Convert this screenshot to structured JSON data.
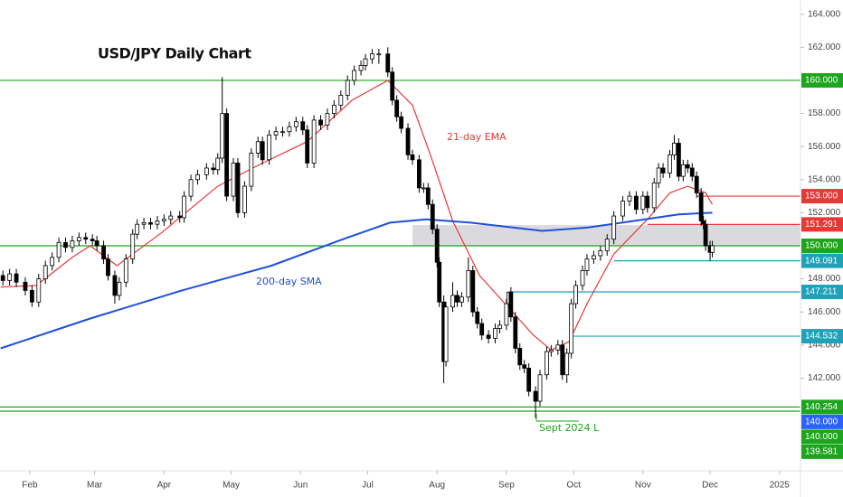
{
  "chart_data": {
    "type": "candlestick",
    "title": "USD/JPY Daily Chart",
    "xlim": [
      18.7,
      376.4
    ],
    "ylim": [
      136.45,
      164.86
    ],
    "xticks": [
      {
        "value": 32,
        "label": "Feb"
      },
      {
        "value": 61,
        "label": "Mar"
      },
      {
        "value": 92,
        "label": "Apr"
      },
      {
        "value": 122,
        "label": "May"
      },
      {
        "value": 153,
        "label": "Jun"
      },
      {
        "value": 183,
        "label": "Jul"
      },
      {
        "value": 214,
        "label": "Aug"
      },
      {
        "value": 245,
        "label": "Sep"
      },
      {
        "value": 275,
        "label": "Oct"
      },
      {
        "value": 306,
        "label": "Nov"
      },
      {
        "value": 336,
        "label": "Dec"
      },
      {
        "value": 367,
        "label": "2025"
      }
    ],
    "yticks": [
      {
        "value": 142,
        "label": "142.000"
      },
      {
        "value": 144,
        "label": "144.000"
      },
      {
        "value": 146,
        "label": "146.000"
      },
      {
        "value": 148,
        "label": "148.000"
      },
      {
        "value": 152,
        "label": "152.000"
      },
      {
        "value": 154,
        "label": "154.000"
      },
      {
        "value": 156,
        "label": "156.000"
      },
      {
        "value": 158,
        "label": "158.000"
      },
      {
        "value": 162,
        "label": "162.000"
      },
      {
        "value": 164,
        "label": "164.000"
      }
    ],
    "up_color": "#ffffff",
    "down_color": "#000000",
    "ohlc": [
      [
        20,
        148.2,
        148.5,
        147.6,
        147.9
      ],
      [
        23,
        147.9,
        148.6,
        147.6,
        148.3
      ],
      [
        26,
        148.3,
        148.6,
        147.5,
        147.8
      ],
      [
        30,
        147.8,
        148.1,
        147.0,
        147.3
      ],
      [
        33,
        147.3,
        147.6,
        146.3,
        146.6
      ],
      [
        36,
        146.6,
        148.3,
        146.3,
        148.0
      ],
      [
        39,
        148.0,
        149.1,
        147.7,
        148.8
      ],
      [
        42,
        148.8,
        149.6,
        148.5,
        149.3
      ],
      [
        45,
        149.3,
        150.5,
        149.0,
        150.2
      ],
      [
        48,
        150.2,
        150.5,
        149.6,
        149.9
      ],
      [
        51,
        149.9,
        150.6,
        149.6,
        150.3
      ],
      [
        54,
        150.3,
        150.8,
        150.0,
        150.5
      ],
      [
        57,
        150.5,
        150.8,
        150.1,
        150.4
      ],
      [
        60,
        150.4,
        150.7,
        150.0,
        150.3
      ],
      [
        62,
        150.3,
        150.6,
        149.7,
        150.0
      ],
      [
        65,
        150.0,
        150.3,
        148.9,
        149.2
      ],
      [
        67,
        149.2,
        149.5,
        147.9,
        148.2
      ],
      [
        70,
        148.2,
        148.5,
        146.5,
        147.0
      ],
      [
        72,
        147.0,
        148.1,
        146.7,
        147.8
      ],
      [
        75,
        147.8,
        149.5,
        147.5,
        149.2
      ],
      [
        78,
        149.2,
        151.0,
        148.9,
        150.7
      ],
      [
        80,
        150.7,
        151.6,
        150.4,
        151.3
      ],
      [
        83,
        151.3,
        151.7,
        151.0,
        151.4
      ],
      [
        86,
        151.4,
        151.7,
        151.0,
        151.3
      ],
      [
        89,
        151.3,
        151.8,
        151.0,
        151.5
      ],
      [
        92,
        151.5,
        151.9,
        151.2,
        151.6
      ],
      [
        95,
        151.6,
        152.1,
        151.3,
        151.8
      ],
      [
        99,
        151.8,
        152.1,
        151.4,
        151.7
      ],
      [
        101,
        151.7,
        153.3,
        151.4,
        153.0
      ],
      [
        104,
        153.0,
        154.3,
        152.7,
        154.0
      ],
      [
        107,
        154.0,
        154.6,
        153.7,
        154.3
      ],
      [
        111,
        154.3,
        155.0,
        154.0,
        154.7
      ],
      [
        114,
        154.7,
        155.0,
        154.3,
        154.6
      ],
      [
        116,
        154.6,
        155.6,
        154.3,
        155.3
      ],
      [
        118,
        155.3,
        160.2,
        155.0,
        158.0
      ],
      [
        120,
        158.0,
        158.3,
        152.7,
        153.0
      ],
      [
        123,
        153.0,
        155.3,
        152.7,
        155.0
      ],
      [
        125,
        155.0,
        155.3,
        151.7,
        152.0
      ],
      [
        128,
        152.0,
        153.9,
        151.7,
        153.6
      ],
      [
        131,
        153.6,
        155.9,
        153.3,
        155.6
      ],
      [
        134,
        155.6,
        156.6,
        155.3,
        156.3
      ],
      [
        136,
        156.3,
        156.6,
        154.9,
        155.2
      ],
      [
        139,
        155.2,
        157.0,
        154.9,
        156.7
      ],
      [
        142,
        156.7,
        157.2,
        156.4,
        156.9
      ],
      [
        145,
        156.9,
        157.2,
        156.6,
        156.9
      ],
      [
        148,
        156.9,
        157.5,
        156.6,
        157.2
      ],
      [
        151,
        157.2,
        157.8,
        156.9,
        157.5
      ],
      [
        154,
        157.5,
        157.8,
        156.7,
        157.0
      ],
      [
        156,
        157.0,
        157.3,
        154.7,
        155.0
      ],
      [
        159,
        155.0,
        157.9,
        154.7,
        157.6
      ],
      [
        162,
        157.6,
        157.9,
        157.0,
        157.3
      ],
      [
        165,
        157.3,
        158.3,
        157.0,
        158.0
      ],
      [
        168,
        158.0,
        158.8,
        157.7,
        158.5
      ],
      [
        171,
        158.5,
        159.4,
        158.2,
        159.1
      ],
      [
        174,
        159.1,
        160.3,
        158.8,
        160.0
      ],
      [
        177,
        160.0,
        160.9,
        159.7,
        160.6
      ],
      [
        180,
        160.6,
        161.2,
        160.3,
        160.9
      ],
      [
        182,
        160.9,
        161.6,
        160.6,
        161.3
      ],
      [
        185,
        161.3,
        161.9,
        161.0,
        161.6
      ],
      [
        188,
        161.6,
        161.9,
        161.0,
        161.6
      ],
      [
        192,
        161.6,
        162.0,
        160.2,
        160.5
      ],
      [
        194,
        160.5,
        160.8,
        158.5,
        158.8
      ],
      [
        196,
        158.8,
        159.1,
        157.5,
        157.8
      ],
      [
        198,
        157.8,
        158.1,
        156.8,
        157.1
      ],
      [
        201,
        157.1,
        157.4,
        155.2,
        155.5
      ],
      [
        203,
        155.5,
        155.8,
        154.9,
        155.2
      ],
      [
        206,
        155.2,
        155.5,
        153.2,
        153.5
      ],
      [
        208,
        153.5,
        153.8,
        153.2,
        153.5
      ],
      [
        210,
        153.5,
        153.8,
        152.2,
        152.5
      ],
      [
        212,
        152.5,
        152.8,
        150.7,
        151.0
      ],
      [
        214,
        151.0,
        151.3,
        148.7,
        149.0
      ],
      [
        215,
        149.0,
        149.3,
        146.3,
        146.6
      ],
      [
        217,
        146.6,
        147.0,
        141.7,
        143.0
      ],
      [
        218,
        143.0,
        146.6,
        142.7,
        146.3
      ],
      [
        221,
        146.3,
        147.8,
        146.0,
        147.0
      ],
      [
        223,
        147.0,
        147.3,
        146.3,
        146.6
      ],
      [
        225,
        146.6,
        147.2,
        146.3,
        146.9
      ],
      [
        228,
        146.9,
        149.3,
        146.6,
        148.5
      ],
      [
        230,
        148.5,
        148.8,
        145.7,
        146.0
      ],
      [
        232,
        146.0,
        146.3,
        145.0,
        145.3
      ],
      [
        234,
        145.3,
        145.6,
        144.3,
        144.6
      ],
      [
        237,
        144.6,
        144.9,
        144.1,
        144.4
      ],
      [
        240,
        144.4,
        145.3,
        144.1,
        145.0
      ],
      [
        242,
        145.0,
        145.5,
        144.7,
        145.2
      ],
      [
        245,
        145.2,
        146.8,
        144.9,
        146.5
      ],
      [
        246,
        146.5,
        147.21,
        146.2,
        147.2
      ],
      [
        247,
        147.2,
        147.5,
        145.4,
        145.7
      ],
      [
        249,
        145.7,
        146.0,
        143.5,
        143.8
      ],
      [
        251,
        143.8,
        144.1,
        142.5,
        142.8
      ],
      [
        253,
        142.8,
        143.1,
        142.3,
        142.6
      ],
      [
        255,
        142.6,
        142.9,
        140.9,
        141.2
      ],
      [
        258,
        141.2,
        141.5,
        139.58,
        140.6
      ],
      [
        260,
        140.6,
        142.5,
        140.3,
        142.2
      ],
      [
        263,
        142.2,
        143.9,
        141.9,
        143.6
      ],
      [
        265,
        143.6,
        144.0,
        143.3,
        143.7
      ],
      [
        268,
        143.7,
        144.3,
        143.4,
        144.0
      ],
      [
        270,
        144.0,
        144.3,
        141.9,
        142.2
      ],
      [
        272,
        142.2,
        143.8,
        141.7,
        143.5
      ],
      [
        274,
        143.5,
        146.8,
        143.2,
        146.5
      ],
      [
        276,
        146.5,
        147.9,
        146.2,
        147.6
      ],
      [
        279,
        147.6,
        148.8,
        147.3,
        148.5
      ],
      [
        281,
        148.5,
        149.5,
        148.2,
        149.2
      ],
      [
        284,
        149.2,
        149.7,
        148.9,
        149.4
      ],
      [
        287,
        149.4,
        150.0,
        149.1,
        149.7
      ],
      [
        290,
        149.7,
        150.7,
        149.4,
        150.4
      ],
      [
        293,
        150.4,
        152.1,
        150.1,
        151.8
      ],
      [
        297,
        151.8,
        153.0,
        151.5,
        152.7
      ],
      [
        300,
        152.7,
        153.3,
        152.4,
        153.0
      ],
      [
        303,
        153.0,
        153.3,
        151.9,
        152.2
      ],
      [
        306,
        152.2,
        153.3,
        151.9,
        153.0
      ],
      [
        308,
        153.0,
        153.3,
        152.0,
        152.3
      ],
      [
        311,
        152.3,
        154.1,
        152.0,
        153.8
      ],
      [
        313,
        153.8,
        155.0,
        153.5,
        154.7
      ],
      [
        315,
        154.7,
        155.0,
        154.1,
        154.4
      ],
      [
        318,
        154.4,
        155.8,
        154.1,
        155.5
      ],
      [
        320,
        155.5,
        156.7,
        155.2,
        156.2
      ],
      [
        322,
        156.2,
        156.5,
        153.9,
        154.2
      ],
      [
        324,
        154.2,
        155.2,
        153.9,
        154.9
      ],
      [
        326,
        154.9,
        155.2,
        154.4,
        154.7
      ],
      [
        328,
        154.7,
        155.0,
        153.9,
        154.2
      ],
      [
        330,
        154.2,
        154.5,
        152.9,
        153.2
      ],
      [
        332,
        153.2,
        153.5,
        151.2,
        151.5
      ],
      [
        333,
        151.5,
        151.8,
        151.0,
        151.3
      ],
      [
        334,
        151.3,
        151.6,
        149.7,
        150.0
      ],
      [
        336,
        150.0,
        150.3,
        149.09,
        149.6
      ],
      [
        337,
        149.6,
        150.3,
        149.3,
        150.0
      ]
    ],
    "series": [
      {
        "name": "21-day EMA",
        "color": "#e53935",
        "x": [
          19,
          35,
          51,
          59,
          71,
          91,
          116,
          136,
          156,
          176,
          192,
          203,
          211,
          221,
          233,
          245,
          257,
          265,
          273,
          281,
          293,
          308,
          318,
          326,
          334,
          337
        ],
        "values": [
          147.5,
          147.6,
          149.3,
          150.0,
          148.8,
          150.8,
          153.6,
          155.0,
          156.3,
          158.8,
          160.0,
          158.5,
          155.5,
          151.5,
          148.2,
          146.4,
          144.6,
          143.7,
          144.2,
          146.5,
          149.5,
          151.6,
          153.2,
          153.6,
          153.2,
          152.5
        ]
      },
      {
        "name": "200-day SMA",
        "color": "#1e4fd8",
        "x": [
          19,
          59,
          100,
          140,
          172,
          193,
          209,
          229,
          261,
          281,
          302,
          322,
          337
        ],
        "values": [
          143.8,
          145.6,
          147.3,
          148.8,
          150.4,
          151.4,
          151.6,
          151.4,
          150.9,
          151.1,
          151.5,
          151.9,
          152.0
        ]
      }
    ],
    "zone": {
      "x0": 203,
      "ylim": [
        150.0,
        151.25
      ],
      "color": "#d3d4d8"
    },
    "levels": [
      {
        "value": 160,
        "label": "160.000",
        "color": "#1ea51e"
      },
      {
        "value": 153,
        "label": "153.000",
        "color": "#e53935",
        "from": 330
      },
      {
        "value": 151.291,
        "label": "151.291",
        "color": "#e53935",
        "from": 308
      },
      {
        "value": 150,
        "label": "150.000",
        "color": "#1ea51e"
      },
      {
        "value": 149.091,
        "label": "149.091",
        "color": "#1fa2b8",
        "from": 293
      },
      {
        "value": 147.211,
        "label": "147.211",
        "color": "#1fa2b8",
        "from": 246
      },
      {
        "value": 144.532,
        "label": "144.532",
        "color": "#1fa2b8",
        "from": 274
      },
      {
        "value": 140.254,
        "label": "140.254",
        "color": "#1ea51e"
      },
      {
        "value": 140,
        "label": "140.000",
        "color": "#2962ff",
        "line": false
      },
      {
        "value": 140,
        "label": "140.000",
        "color": "#1ea51e"
      },
      {
        "value": 139.581,
        "label": "139.581",
        "color": "#1ea51e",
        "line": false
      }
    ],
    "annotations": [
      "Sept 2024 L"
    ]
  }
}
